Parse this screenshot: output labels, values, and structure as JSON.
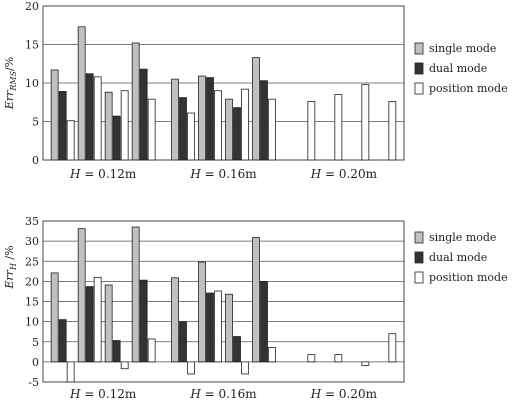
{
  "chart_data": [
    {
      "type": "bar",
      "ylabel_main": "Err",
      "ylabel_sub": "RMS",
      "ylabel_unit": "/%",
      "ylim": [
        0,
        20
      ],
      "yticks": [
        0,
        5,
        10,
        15,
        20
      ],
      "grid": "horizontal",
      "legend_position": "right",
      "groups": [
        {
          "label": "H = 0.12m",
          "var": "H",
          "value": " = 0.12m"
        },
        {
          "label": "H = 0.16m",
          "var": "H",
          "value": " = 0.16m"
        },
        {
          "label": "H = 0.20m",
          "var": "H",
          "value": " = 0.20m"
        }
      ],
      "series": [
        {
          "name": "single mode",
          "color": "#c0c0c0",
          "values": [
            [
              11.7,
              17.3,
              8.8,
              15.2
            ],
            [
              10.5,
              10.9,
              7.9,
              13.3
            ],
            [
              null,
              null,
              null,
              null
            ]
          ]
        },
        {
          "name": "dual mode",
          "color": "#333333",
          "values": [
            [
              8.9,
              11.2,
              5.7,
              11.8
            ],
            [
              8.1,
              10.7,
              6.8,
              10.3
            ],
            [
              null,
              null,
              null,
              null
            ]
          ]
        },
        {
          "name": "position mode",
          "color": "#ffffff",
          "values": [
            [
              5.1,
              10.8,
              9.0,
              7.9
            ],
            [
              6.1,
              9.0,
              9.2,
              7.9
            ],
            [
              7.6,
              8.5,
              9.8,
              7.6
            ]
          ]
        }
      ]
    },
    {
      "type": "bar",
      "ylabel_main": "Err",
      "ylabel_sub": "H",
      "ylabel_unit": " /%",
      "ylim": [
        -5,
        35
      ],
      "yticks": [
        -5,
        0,
        5,
        10,
        15,
        20,
        25,
        30,
        35
      ],
      "grid": "horizontal",
      "legend_position": "right",
      "groups": [
        {
          "label": "H = 0.12m",
          "var": "H",
          "value": " = 0.12m"
        },
        {
          "label": "H = 0.16m",
          "var": "H",
          "value": " = 0.16m"
        },
        {
          "label": "H = 0.20m",
          "var": "H",
          "value": " = 0.20m"
        }
      ],
      "series": [
        {
          "name": "single mode",
          "color": "#c0c0c0",
          "values": [
            [
              22.1,
              33.1,
              19.1,
              33.5
            ],
            [
              20.9,
              24.8,
              16.8,
              30.9
            ],
            [
              null,
              null,
              null,
              null
            ]
          ]
        },
        {
          "name": "dual mode",
          "color": "#333333",
          "values": [
            [
              10.5,
              18.7,
              5.3,
              20.3
            ],
            [
              10.0,
              17.1,
              6.3,
              20.0
            ],
            [
              null,
              null,
              null,
              null
            ]
          ]
        },
        {
          "name": "position mode",
          "color": "#ffffff",
          "values": [
            [
              -5.0,
              21.0,
              -1.7,
              5.7
            ],
            [
              -3.0,
              17.6,
              -3.0,
              3.6
            ],
            [
              1.8,
              1.8,
              -0.9,
              7.0
            ]
          ]
        }
      ]
    }
  ]
}
